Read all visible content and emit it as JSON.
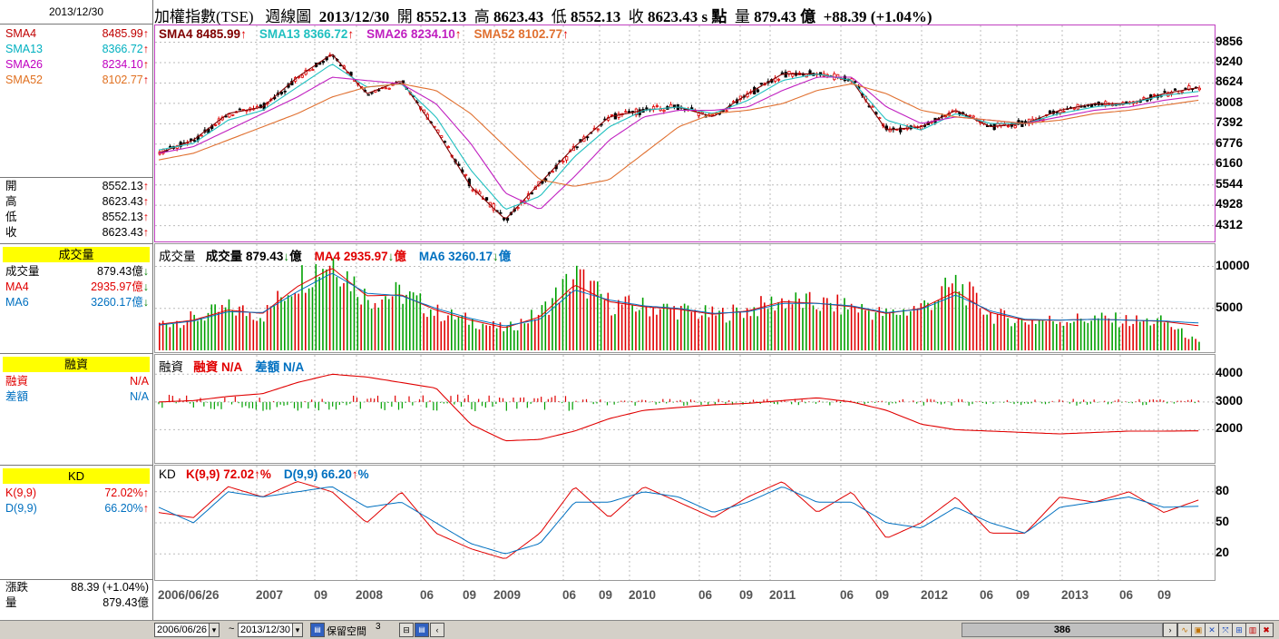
{
  "header": {
    "index_name": "加權指數(TSE)",
    "chart_kind": "週線圖",
    "date": "2013/12/30",
    "open_label": "開",
    "open": "8552.13",
    "high_label": "高",
    "high": "8623.43",
    "low_label": "低",
    "low": "8552.13",
    "close_label": "收",
    "close": "8623.43",
    "close_suffix": "s 點",
    "volume_label": "量",
    "volume": "879.43 億",
    "change": "+88.39 (+1.04%)"
  },
  "left_panel": {
    "date": "2013/12/30",
    "sma": [
      {
        "label": "SMA4",
        "value": "8485.99",
        "arrow": "↑",
        "color": "#c00000"
      },
      {
        "label": "SMA13",
        "value": "8366.72",
        "arrow": "↑",
        "color": "#00b0c0"
      },
      {
        "label": "SMA26",
        "value": "8234.10",
        "arrow": "↑",
        "color": "#c000c0"
      },
      {
        "label": "SMA52",
        "value": "8102.77",
        "arrow": "↑",
        "color": "#e07020"
      }
    ],
    "ohlc": [
      {
        "label": "開",
        "value": "8552.13",
        "arrow": "↑"
      },
      {
        "label": "高",
        "value": "8623.43",
        "arrow": "↑"
      },
      {
        "label": "低",
        "value": "8552.13",
        "arrow": "↑"
      },
      {
        "label": "收",
        "value": "8623.43",
        "arrow": "↑"
      }
    ],
    "volume_header": "成交量",
    "volume_rows": [
      {
        "label": "成交量",
        "value": "879.43億",
        "arrow": "↓",
        "color": "#000000"
      },
      {
        "label": "MA4",
        "value": "2935.97億",
        "arrow": "↓",
        "color": "#e00000"
      },
      {
        "label": "MA6",
        "value": "3260.17億",
        "arrow": "↓",
        "color": "#0070c0"
      }
    ],
    "margin_header": "融資",
    "margin_rows": [
      {
        "label": "融資",
        "value": "N/A",
        "color": "#e00000"
      },
      {
        "label": "差額",
        "value": "N/A",
        "color": "#0070c0"
      }
    ],
    "kd_header": "KD",
    "kd_rows": [
      {
        "label": "K(9,9)",
        "value": "72.02%",
        "arrow": "↑",
        "color": "#e00000"
      },
      {
        "label": "D(9,9)",
        "value": "66.20%",
        "arrow": "↑",
        "color": "#0070c0"
      }
    ],
    "change_label": "漲跌",
    "change_value": "88.39 (+1.04%)",
    "vol_label": "量",
    "vol_value": "879.43億"
  },
  "price_panel": {
    "legend": [
      {
        "label": "SMA4",
        "value": "8485.99",
        "arrow": "↑",
        "color": "#800000"
      },
      {
        "label": "SMA13",
        "value": "8366.72",
        "arrow": "↑",
        "color": "#20c0c0"
      },
      {
        "label": "SMA26",
        "value": "8234.10",
        "arrow": "↑",
        "color": "#c020c0"
      },
      {
        "label": "SMA52",
        "value": "8102.77",
        "arrow": "↑",
        "color": "#e07030"
      }
    ],
    "y_ticks": [
      "9856",
      "9240",
      "8624",
      "8008",
      "7392",
      "6776",
      "6160",
      "5544",
      "4928",
      "4312"
    ]
  },
  "volume_panel": {
    "title": "成交量",
    "legend": [
      {
        "label": "成交量",
        "value": "879.43",
        "arrow": "↓",
        "unit": "億",
        "color": "#000000"
      },
      {
        "label": "MA4",
        "value": "2935.97",
        "arrow": "↓",
        "unit": "億",
        "color": "#e00000"
      },
      {
        "label": "MA6",
        "value": "3260.17",
        "arrow": "↓",
        "unit": "億",
        "color": "#0070c0"
      }
    ],
    "y_ticks": [
      "10000",
      "5000"
    ]
  },
  "margin_panel": {
    "title": "融資",
    "legend": [
      {
        "label": "融資",
        "value": "N/A",
        "color": "#e00000"
      },
      {
        "label": "差額",
        "value": "N/A",
        "color": "#0070c0"
      }
    ],
    "y_ticks": [
      "4000",
      "3000",
      "2000"
    ]
  },
  "kd_panel": {
    "title": "KD",
    "legend": [
      {
        "label": "K(9,9)",
        "value": "72.02",
        "arrow": "↑",
        "unit": "%",
        "color": "#e00000"
      },
      {
        "label": "D(9,9)",
        "value": "66.20",
        "arrow": "↑",
        "unit": "%",
        "color": "#0070c0"
      }
    ],
    "y_ticks": [
      "80",
      "50",
      "20"
    ]
  },
  "x_axis": [
    {
      "label": "2006/06/26",
      "year": false
    },
    {
      "label": "2007",
      "year": true
    },
    {
      "label": "09",
      "year": false
    },
    {
      "label": "2008",
      "year": true
    },
    {
      "label": "06",
      "year": false
    },
    {
      "label": "09",
      "year": false
    },
    {
      "label": "2009",
      "year": true
    },
    {
      "label": "06",
      "year": false
    },
    {
      "label": "09",
      "year": false
    },
    {
      "label": "2010",
      "year": true
    },
    {
      "label": "06",
      "year": false
    },
    {
      "label": "09",
      "year": false
    },
    {
      "label": "2011",
      "year": true
    },
    {
      "label": "06",
      "year": false
    },
    {
      "label": "09",
      "year": false
    },
    {
      "label": "2012",
      "year": true
    },
    {
      "label": "06",
      "year": false
    },
    {
      "label": "09",
      "year": false
    },
    {
      "label": "2013",
      "year": true
    },
    {
      "label": "06",
      "year": false
    },
    {
      "label": "09",
      "year": false
    }
  ],
  "toolbar": {
    "start_date": "2006/06/26",
    "separator": "~",
    "end_date": "2013/12/30",
    "space_label": "保留空間",
    "space_value": "3",
    "scroll_value": "386"
  },
  "chart_data": [
    {
      "type": "line",
      "title": "加權指數(TSE) 週線圖",
      "x": [
        "2006/06",
        "2006/09",
        "2007/01",
        "2007/04",
        "2007/07",
        "2007/10",
        "2008/01",
        "2008/04",
        "2008/07",
        "2008/10",
        "2009/01",
        "2009/04",
        "2009/07",
        "2009/10",
        "2010/01",
        "2010/04",
        "2010/07",
        "2010/10",
        "2011/01",
        "2011/04",
        "2011/07",
        "2011/10",
        "2012/01",
        "2012/04",
        "2012/07",
        "2012/10",
        "2013/01",
        "2013/04",
        "2013/07",
        "2013/10",
        "2013/12"
      ],
      "series": [
        {
          "name": "SMA4",
          "values": [
            6500,
            6900,
            7700,
            7900,
            8800,
            9500,
            8300,
            8700,
            7200,
            5500,
            4500,
            5600,
            6700,
            7600,
            7800,
            7900,
            7600,
            8300,
            8900,
            8900,
            8700,
            7200,
            7300,
            7800,
            7300,
            7400,
            7800,
            8000,
            8000,
            8300,
            8486
          ]
        },
        {
          "name": "SMA13",
          "values": [
            6600,
            6800,
            7500,
            7800,
            8500,
            9200,
            8500,
            8600,
            7600,
            6000,
            4800,
            5200,
            6400,
            7300,
            7800,
            7900,
            7700,
            8100,
            8700,
            8900,
            8700,
            7500,
            7200,
            7700,
            7400,
            7400,
            7700,
            7900,
            8000,
            8250,
            8367
          ]
        },
        {
          "name": "SMA26",
          "values": [
            6500,
            6700,
            7200,
            7700,
            8200,
            8800,
            8700,
            8600,
            8000,
            6800,
            5300,
            4800,
            5800,
            6900,
            7600,
            7800,
            7800,
            7900,
            8400,
            8800,
            8800,
            7900,
            7400,
            7600,
            7500,
            7400,
            7600,
            7800,
            7900,
            8100,
            8234
          ]
        },
        {
          "name": "SMA52",
          "values": [
            6300,
            6500,
            6900,
            7300,
            7700,
            8200,
            8500,
            8600,
            8400,
            7700,
            6700,
            5700,
            5500,
            5700,
            6500,
            7300,
            7700,
            7800,
            8000,
            8400,
            8600,
            8300,
            7800,
            7600,
            7500,
            7400,
            7500,
            7700,
            7800,
            7950,
            8103
          ]
        }
      ],
      "ylim": [
        4000,
        10200
      ]
    },
    {
      "type": "bar",
      "title": "成交量",
      "ylim": [
        0,
        12000
      ],
      "series": [
        {
          "name": "成交量",
          "values": [
            3200,
            3800,
            5000,
            4200,
            8500,
            11000,
            6200,
            6800,
            4500,
            3500,
            2500,
            4500,
            9000,
            5500,
            5200,
            4800,
            4200,
            4800,
            6000,
            5500,
            5200,
            4200,
            5200,
            8000,
            4200,
            3500,
            3600,
            3800,
            3500,
            3400,
            879
          ]
        },
        {
          "name": "MA4",
          "values": [
            3100,
            3600,
            4800,
            4400,
            7600,
            9800,
            6500,
            6600,
            4800,
            3600,
            2700,
            4000,
            7800,
            5800,
            5200,
            4900,
            4300,
            4700,
            5800,
            5600,
            5200,
            4400,
            5000,
            7000,
            4500,
            3600,
            3600,
            3700,
            3600,
            3450,
            2936
          ]
        },
        {
          "name": "MA6",
          "values": [
            3000,
            3500,
            4600,
            4500,
            7000,
            9200,
            6800,
            6500,
            5000,
            3800,
            2900,
            3700,
            7200,
            6000,
            5300,
            5000,
            4400,
            4600,
            5600,
            5600,
            5300,
            4500,
            4900,
            6600,
            4700,
            3700,
            3600,
            3700,
            3600,
            3500,
            3260
          ]
        }
      ]
    },
    {
      "type": "line",
      "title": "融資",
      "ylim": [
        1000,
        4500
      ],
      "series": [
        {
          "name": "融資",
          "values": [
            3000,
            3050,
            3200,
            3300,
            3700,
            4000,
            3900,
            3700,
            3500,
            2200,
            1600,
            1650,
            1950,
            2400,
            2700,
            2800,
            2900,
            2950,
            3050,
            3150,
            3000,
            2700,
            2200,
            2000,
            1950,
            1900,
            1850,
            1900,
            1950,
            1950,
            1960
          ]
        }
      ]
    },
    {
      "type": "line",
      "title": "KD",
      "ylim": [
        0,
        100
      ],
      "series": [
        {
          "name": "K(9,9)",
          "values": [
            60,
            55,
            85,
            75,
            90,
            80,
            50,
            80,
            40,
            25,
            15,
            40,
            85,
            55,
            85,
            70,
            55,
            75,
            90,
            60,
            80,
            35,
            50,
            75,
            40,
            40,
            75,
            70,
            80,
            60,
            72
          ]
        },
        {
          "name": "D(9,9)",
          "values": [
            65,
            50,
            80,
            75,
            80,
            85,
            65,
            70,
            50,
            30,
            20,
            30,
            70,
            70,
            80,
            75,
            60,
            70,
            85,
            70,
            70,
            50,
            45,
            65,
            50,
            40,
            65,
            70,
            75,
            65,
            66
          ]
        }
      ]
    }
  ]
}
